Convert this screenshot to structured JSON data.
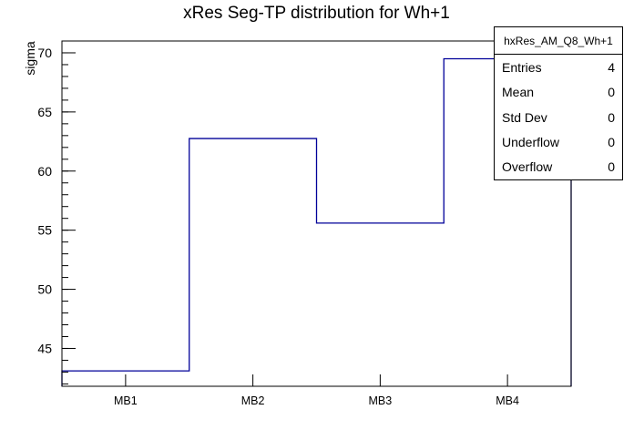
{
  "chart_data": {
    "type": "step-histogram",
    "title": "xRes Seg-TP distribution for Wh+1",
    "xlabel": "",
    "ylabel": "sigma",
    "categories": [
      "MB1",
      "MB2",
      "MB3",
      "MB4"
    ],
    "values": [
      43.1,
      62.75,
      55.6,
      69.5
    ],
    "ylim": [
      41.8,
      71.0
    ],
    "yticks_major": [
      45,
      50,
      55,
      60,
      65,
      70
    ],
    "ytick_minor_step": 1,
    "grid": false,
    "legend_position": "none",
    "line_color": "#000099",
    "frame_color": "#000000",
    "background_color": "#ffffff"
  },
  "stats_box": {
    "header": "hxRes_AM_Q8_Wh+1",
    "rows": [
      {
        "label": "Entries",
        "value": "4"
      },
      {
        "label": "Mean",
        "value": "0"
      },
      {
        "label": "Std Dev",
        "value": "0"
      },
      {
        "label": "Underflow",
        "value": "0"
      },
      {
        "label": "Overflow",
        "value": "0"
      }
    ]
  }
}
